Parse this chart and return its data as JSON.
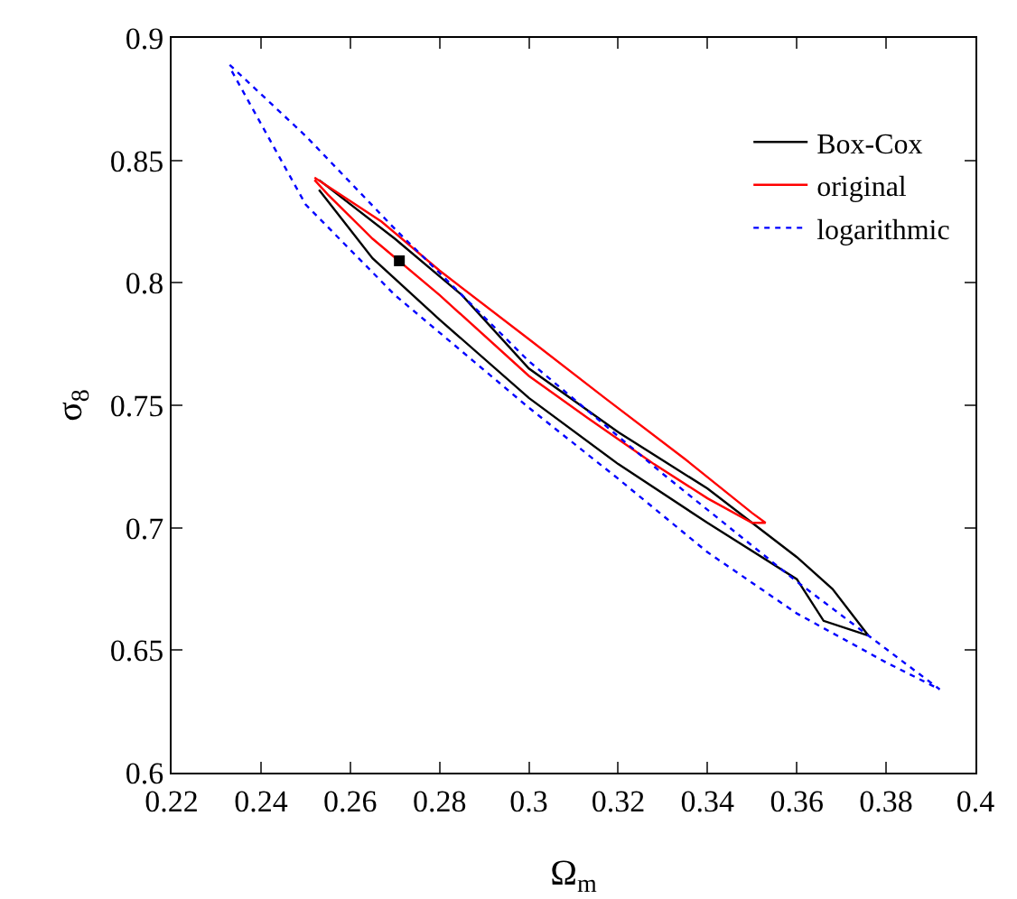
{
  "chart_data": {
    "type": "line",
    "xlabel": "Ω$_{m}$",
    "ylabel": "σ$_{8}$",
    "xlim": [
      0.22,
      0.4
    ],
    "ylim": [
      0.6,
      0.9
    ],
    "xticks": [
      0.22,
      0.24,
      0.26,
      0.28,
      0.3,
      0.32,
      0.34,
      0.36,
      0.38,
      0.4
    ],
    "yticks": [
      0.6,
      0.65,
      0.7,
      0.75,
      0.8,
      0.85,
      0.9
    ],
    "grid": false,
    "legend": "top right",
    "marker": "none",
    "series": [
      {
        "name": "Box-Cox",
        "color": "#000000",
        "line_style": "solid",
        "x": [
          0.253,
          0.27,
          0.285,
          0.3,
          0.32,
          0.34,
          0.36,
          0.368,
          0.376,
          0.366,
          0.36,
          0.34,
          0.32,
          0.3,
          0.28,
          0.265,
          0.253
        ],
        "values": [
          0.842,
          0.818,
          0.795,
          0.765,
          0.739,
          0.716,
          0.688,
          0.675,
          0.656,
          0.662,
          0.679,
          0.702,
          0.726,
          0.753,
          0.785,
          0.81,
          0.838
        ]
      },
      {
        "name": "original",
        "color": "#ff0000",
        "line_style": "solid",
        "x": [
          0.252,
          0.267,
          0.28,
          0.3,
          0.317,
          0.335,
          0.35,
          0.353,
          0.35,
          0.34,
          0.328,
          0.313,
          0.3,
          0.28,
          0.265,
          0.255,
          0.252
        ],
        "values": [
          0.843,
          0.825,
          0.805,
          0.777,
          0.753,
          0.728,
          0.706,
          0.702,
          0.702,
          0.712,
          0.726,
          0.745,
          0.762,
          0.795,
          0.818,
          0.836,
          0.842
        ]
      },
      {
        "name": "logarithmic",
        "color": "#0000ff",
        "line_style": "dotted",
        "x": [
          0.233,
          0.25,
          0.27,
          0.3,
          0.33,
          0.36,
          0.392,
          0.38,
          0.36,
          0.34,
          0.32,
          0.3,
          0.27,
          0.25,
          0.233
        ],
        "values": [
          0.889,
          0.86,
          0.822,
          0.768,
          0.722,
          0.678,
          0.634,
          0.645,
          0.665,
          0.69,
          0.72,
          0.749,
          0.795,
          0.832,
          0.888
        ]
      },
      {
        "type": "scatter",
        "marker": "square",
        "color": "#000000",
        "x": [
          0.271
        ],
        "values": [
          0.809
        ]
      }
    ]
  }
}
